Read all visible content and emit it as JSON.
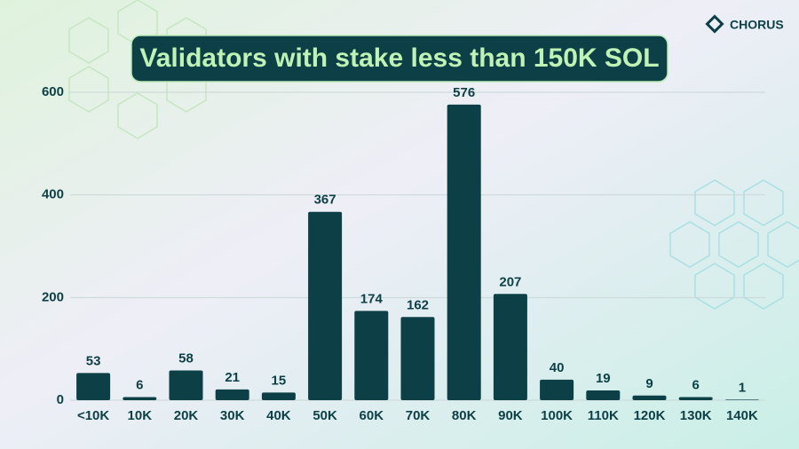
{
  "logo": "CHORUS",
  "chart_data": {
    "type": "bar",
    "title": "Validators with stake less than 150K SOL",
    "categories": [
      "<10K",
      "10K",
      "20K",
      "30K",
      "40K",
      "50K",
      "60K",
      "70K",
      "80K",
      "90K",
      "100K",
      "110K",
      "120K",
      "130K",
      "140K"
    ],
    "values": [
      53,
      6,
      58,
      21,
      15,
      367,
      174,
      162,
      576,
      207,
      40,
      19,
      9,
      6,
      1
    ],
    "color": "#0c3f46",
    "ylim": [
      0,
      600
    ],
    "yticks": [
      0,
      200,
      400,
      600
    ],
    "grid": true
  }
}
